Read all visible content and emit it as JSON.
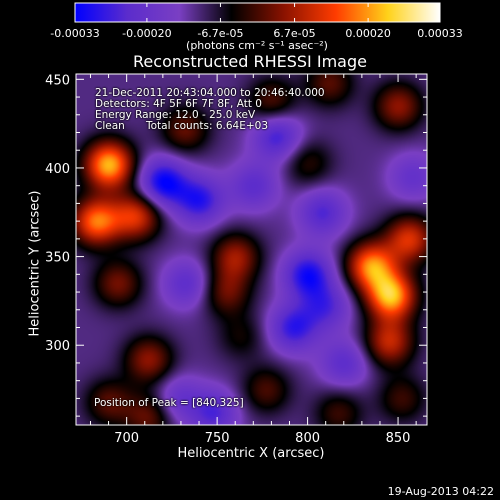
{
  "chart_data": {
    "type": "heatmap",
    "title": "Reconstructed RHESSI Image",
    "xlabel": "Heliocentric X (arcsec)",
    "ylabel": "Heliocentric Y (arcsec)",
    "xlim": [
      672,
      866
    ],
    "ylim": [
      255,
      453
    ],
    "xticks": [
      700,
      750,
      800,
      850
    ],
    "yticks": [
      300,
      350,
      400,
      450
    ],
    "colorbar": {
      "range": [
        -0.00033,
        0.00033
      ],
      "tick_values": [
        -0.00033,
        -0.0002,
        -6.7e-05,
        6.7e-05,
        0.0002,
        0.00033
      ],
      "tick_labels": [
        "-0.00033",
        "-0.00020",
        "-6.7e-05",
        "6.7e-05",
        "0.00020",
        "0.00033"
      ],
      "units": "(photons cm⁻² s⁻¹ asec⁻²)",
      "colors": [
        "#0000ff",
        "#5b2ccc",
        "#7a3fc3",
        "#000000",
        "#8a1200",
        "#ff3c00",
        "#ffd21a",
        "#ffffff"
      ]
    },
    "annotations": {
      "time_range": "21-Dec-2011 20:43:04.000 to 20:46:40.000",
      "detectors": "Detectors: 4F 5F 6F 7F 8F, Att 0",
      "energy": "Energy Range: 12.0 - 25.0 keV",
      "method": "Clean",
      "counts": "Total counts: 6.64E+03",
      "peak": "Position of Peak = [840,325]"
    },
    "blobs": [
      {
        "x": 690,
        "y": 402,
        "v": 0.00033
      },
      {
        "x": 683,
        "y": 370,
        "v": 0.00028
      },
      {
        "x": 705,
        "y": 373,
        "v": 0.00022
      },
      {
        "x": 695,
        "y": 335,
        "v": 0.00014
      },
      {
        "x": 712,
        "y": 292,
        "v": 0.00016
      },
      {
        "x": 690,
        "y": 268,
        "v": 0.00012
      },
      {
        "x": 712,
        "y": 260,
        "v": 0.00013
      },
      {
        "x": 732,
        "y": 422,
        "v": 0.00013
      },
      {
        "x": 780,
        "y": 438,
        "v": 0.00012
      },
      {
        "x": 812,
        "y": 448,
        "v": 0.00012
      },
      {
        "x": 850,
        "y": 435,
        "v": 0.00016
      },
      {
        "x": 800,
        "y": 403,
        "v": 9e-05
      },
      {
        "x": 760,
        "y": 350,
        "v": 0.00017
      },
      {
        "x": 755,
        "y": 330,
        "v": 0.00013
      },
      {
        "x": 763,
        "y": 305,
        "v": 7e-05
      },
      {
        "x": 777,
        "y": 275,
        "v": 0.00011
      },
      {
        "x": 835,
        "y": 345,
        "v": 0.00029
      },
      {
        "x": 846,
        "y": 328,
        "v": 0.00033
      },
      {
        "x": 856,
        "y": 360,
        "v": 0.00022
      },
      {
        "x": 845,
        "y": 302,
        "v": 0.0002
      },
      {
        "x": 817,
        "y": 262,
        "v": 0.0001
      },
      {
        "x": 852,
        "y": 270,
        "v": 0.0001
      },
      {
        "x": 720,
        "y": 392,
        "v": -0.00022
      },
      {
        "x": 740,
        "y": 382,
        "v": -0.00018
      },
      {
        "x": 783,
        "y": 418,
        "v": -0.00016
      },
      {
        "x": 770,
        "y": 390,
        "v": -0.00012
      },
      {
        "x": 808,
        "y": 375,
        "v": -0.00014
      },
      {
        "x": 800,
        "y": 340,
        "v": -0.0002
      },
      {
        "x": 792,
        "y": 310,
        "v": -0.00017
      },
      {
        "x": 810,
        "y": 322,
        "v": -0.00013
      },
      {
        "x": 733,
        "y": 335,
        "v": -0.00012
      },
      {
        "x": 728,
        "y": 270,
        "v": -0.0001
      },
      {
        "x": 748,
        "y": 262,
        "v": -0.00014
      },
      {
        "x": 820,
        "y": 290,
        "v": -0.00012
      },
      {
        "x": 858,
        "y": 395,
        "v": -0.0001
      }
    ]
  },
  "footer": "19-Aug-2013 04:22"
}
